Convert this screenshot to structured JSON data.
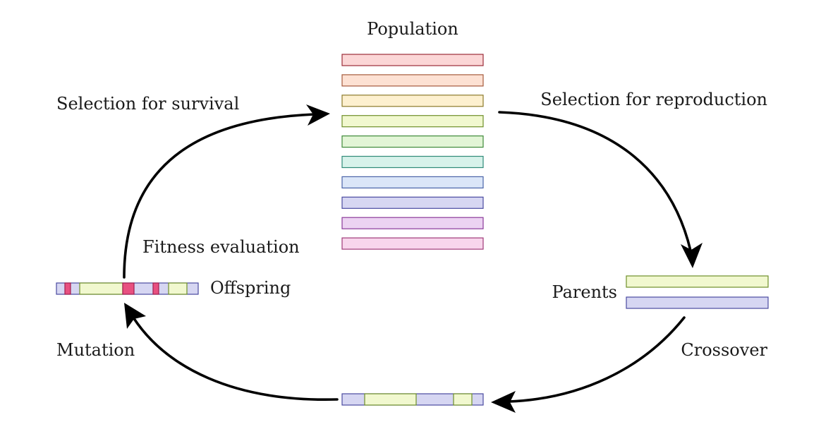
{
  "labels": {
    "population": "Population",
    "selection_reproduction": "Selection for reproduction",
    "selection_survival": "Selection for survival",
    "fitness_evaluation": "Fitness evaluation",
    "offspring": "Offspring",
    "parents": "Parents",
    "crossover": "Crossover",
    "mutation": "Mutation"
  },
  "population_colors": [
    {
      "fill": "#fbd6d6",
      "stroke": "#9b2c38"
    },
    {
      "fill": "#fde1d3",
      "stroke": "#a55a3c"
    },
    {
      "fill": "#fdf0cf",
      "stroke": "#8c7a2a"
    },
    {
      "fill": "#f1f8cf",
      "stroke": "#6f8f2a"
    },
    {
      "fill": "#e2f5d6",
      "stroke": "#3f8a3a"
    },
    {
      "fill": "#d7f2ea",
      "stroke": "#2f8a78"
    },
    {
      "fill": "#dbe6f8",
      "stroke": "#4a63a8"
    },
    {
      "fill": "#d6d6f2",
      "stroke": "#4a4aa0"
    },
    {
      "fill": "#ecd3f2",
      "stroke": "#8a3a9a"
    },
    {
      "fill": "#f8d6ec",
      "stroke": "#a03a78"
    }
  ],
  "colors": {
    "green_fill": "#f1f8cf",
    "green_stroke": "#6f8f2a",
    "blue_fill": "#d6d6f2",
    "blue_stroke": "#4a4aa0",
    "mutation_fill": "#e85080",
    "mutation_stroke": "#a02050"
  }
}
